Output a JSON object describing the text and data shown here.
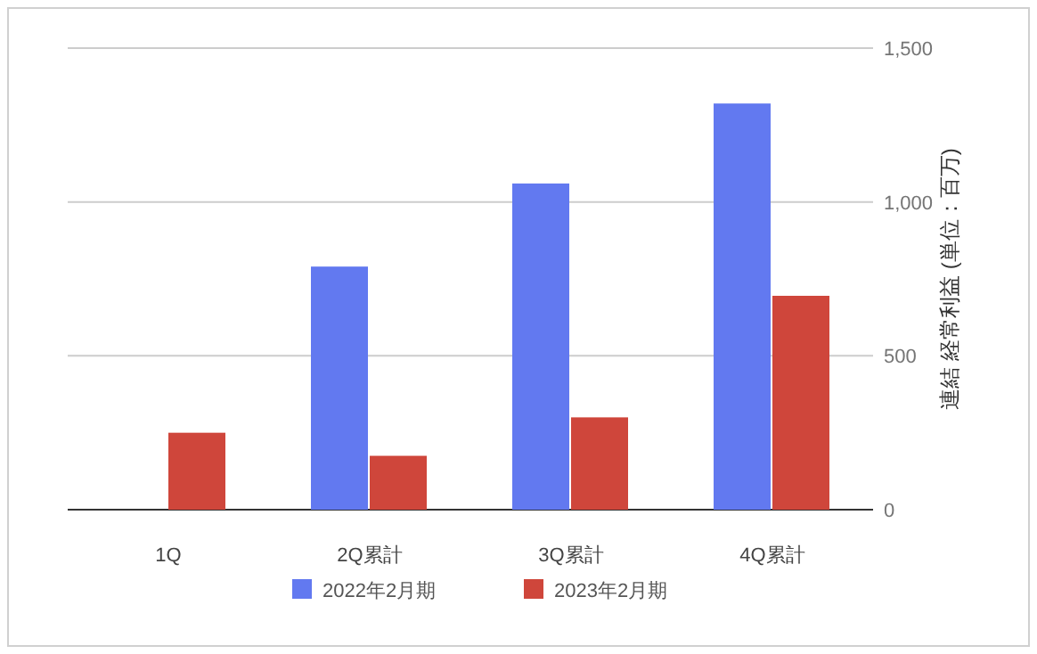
{
  "chart_data": {
    "type": "bar",
    "ylabel": "連結 経常利益 (単位：百万)",
    "categories": [
      "1Q",
      "2Q累計",
      "3Q累計",
      "4Q累計"
    ],
    "series": [
      {
        "name": "2022年2月期",
        "color": "#6279f0",
        "values": [
          0,
          790,
          1060,
          1320
        ]
      },
      {
        "name": "2023年2月期",
        "color": "#cf463b",
        "values": [
          250,
          175,
          300,
          695
        ]
      }
    ],
    "ylim": [
      0,
      1500
    ],
    "yticks": [
      0,
      {
        "value": 500,
        "label": "500"
      },
      {
        "value": 1000,
        "label": "1,000"
      },
      {
        "value": 1500,
        "label": "1,500"
      }
    ],
    "grid": "y",
    "legend": "bottom"
  }
}
